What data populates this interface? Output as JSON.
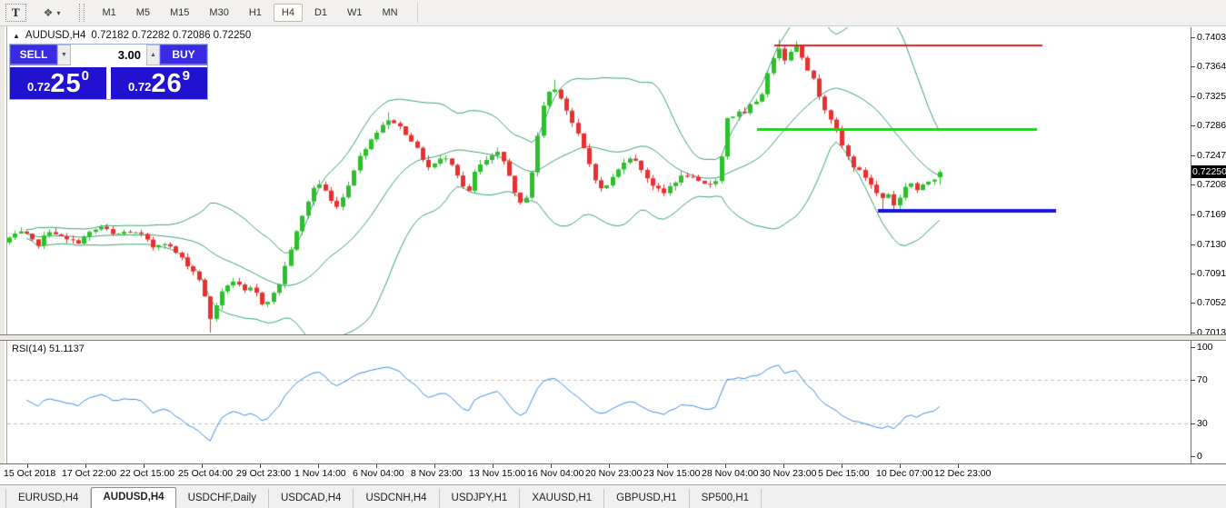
{
  "toolbar": {
    "text_tool_label": "T",
    "arrow_tool_glyph": "❖",
    "dropdown_caret": "▾",
    "timeframes": [
      "M1",
      "M5",
      "M15",
      "M30",
      "H1",
      "H4",
      "D1",
      "W1",
      "MN"
    ],
    "active_timeframe": "H4"
  },
  "chart": {
    "collapse_glyph": "▲",
    "symbol": "AUDUSD,H4",
    "values": "0.72182 0.72282 0.72086 0.72250",
    "current_price": "0.72250"
  },
  "trade_panel": {
    "sell_label": "SELL",
    "buy_label": "BUY",
    "volume": "3.00",
    "spinner_down_glyph": "▼",
    "spinner_up_glyph": "▲",
    "sell_price": {
      "prefix": "0.72",
      "big": "25",
      "sup": "0"
    },
    "buy_price": {
      "prefix": "0.72",
      "big": "26",
      "sup": "9"
    }
  },
  "rsi_pane": {
    "label": "RSI(14) 51.1137"
  },
  "bottom_tabs": {
    "active": "AUDUSD,H4",
    "tabs": [
      "EURUSD,H4",
      "AUDUSD,H4",
      "USDCHF,Daily",
      "USDCAD,H4",
      "USDCNH,H4",
      "USDJPY,H1",
      "XAUUSD,H1",
      "GBPUSD,H1",
      "SP500,H1"
    ]
  },
  "colors": {
    "candle_up": "#2ebe2e",
    "candle_down": "#e83030",
    "bollinger": "#3aa273",
    "rsi_line": "#3c8ede",
    "level_dash": "#c4c4c4",
    "price_tag_bg": "#000000",
    "price_tag_fg": "#ffffff"
  },
  "chart_data": [
    {
      "type": "candlestick",
      "symbol": "AUDUSD",
      "timeframe": "H4",
      "last_candle": {
        "open": 0.72182,
        "high": 0.72282,
        "low": 0.72086,
        "close": 0.7225
      },
      "y_ticks": [
        "0.74030",
        "0.73640",
        "0.73250",
        "0.72860",
        "0.72470",
        "0.72080",
        "0.71690",
        "0.71300",
        "0.70910",
        "0.70520",
        "0.70130"
      ],
      "ylim": [
        0.70106,
        0.74162
      ],
      "current_price": 0.7225,
      "x_labels": [
        "15 Oct 2018",
        "17 Oct 22:00",
        "22 Oct 15:00",
        "25 Oct 04:00",
        "29 Oct 23:00",
        "1 Nov 14:00",
        "6 Nov 04:00",
        "8 Nov 23:00",
        "13 Nov 15:00",
        "16 Nov 04:00",
        "20 Nov 23:00",
        "23 Nov 15:00",
        "28 Nov 04:00",
        "30 Nov 23:00",
        "5 Dec 15:00",
        "10 Dec 07:00",
        "12 Dec 23:00"
      ],
      "x_start": 10,
      "x_end": 1037,
      "candle_step": 6.32,
      "price_path": [
        [
          10,
          0.7138
        ],
        [
          25,
          0.7146
        ],
        [
          40,
          0.7128
        ],
        [
          55,
          0.7149
        ],
        [
          70,
          0.7136
        ],
        [
          85,
          0.7132
        ],
        [
          100,
          0.7146
        ],
        [
          112,
          0.7153
        ],
        [
          125,
          0.7141
        ],
        [
          140,
          0.7147
        ],
        [
          155,
          0.7142
        ],
        [
          168,
          0.7126
        ],
        [
          180,
          0.7133
        ],
        [
          192,
          0.712
        ],
        [
          205,
          0.7104
        ],
        [
          218,
          0.7086
        ],
        [
          226,
          0.7055
        ],
        [
          232,
          0.7028
        ],
        [
          238,
          0.7052
        ],
        [
          248,
          0.7075
        ],
        [
          258,
          0.7082
        ],
        [
          268,
          0.7066
        ],
        [
          278,
          0.7072
        ],
        [
          288,
          0.7052
        ],
        [
          298,
          0.7058
        ],
        [
          308,
          0.708
        ],
        [
          318,
          0.7118
        ],
        [
          328,
          0.7152
        ],
        [
          338,
          0.7185
        ],
        [
          346,
          0.7207
        ],
        [
          354,
          0.721
        ],
        [
          362,
          0.7188
        ],
        [
          372,
          0.718
        ],
        [
          382,
          0.7206
        ],
        [
          392,
          0.7238
        ],
        [
          402,
          0.7258
        ],
        [
          412,
          0.7275
        ],
        [
          422,
          0.729
        ],
        [
          432,
          0.7293
        ],
        [
          442,
          0.7282
        ],
        [
          452,
          0.7268
        ],
        [
          462,
          0.7248
        ],
        [
          472,
          0.723
        ],
        [
          482,
          0.724
        ],
        [
          492,
          0.7246
        ],
        [
          500,
          0.723
        ],
        [
          508,
          0.7208
        ],
        [
          515,
          0.7196
        ],
        [
          522,
          0.7225
        ],
        [
          530,
          0.7236
        ],
        [
          538,
          0.7243
        ],
        [
          548,
          0.725
        ],
        [
          558,
          0.723
        ],
        [
          566,
          0.7196
        ],
        [
          574,
          0.718
        ],
        [
          582,
          0.7202
        ],
        [
          590,
          0.7262
        ],
        [
          598,
          0.7315
        ],
        [
          606,
          0.7336
        ],
        [
          614,
          0.7332
        ],
        [
          622,
          0.731
        ],
        [
          630,
          0.7288
        ],
        [
          638,
          0.7268
        ],
        [
          646,
          0.7243
        ],
        [
          654,
          0.7218
        ],
        [
          662,
          0.72
        ],
        [
          670,
          0.7212
        ],
        [
          680,
          0.7228
        ],
        [
          690,
          0.7247
        ],
        [
          698,
          0.724
        ],
        [
          706,
          0.7228
        ],
        [
          714,
          0.7213
        ],
        [
          722,
          0.7203
        ],
        [
          730,
          0.7196
        ],
        [
          738,
          0.7208
        ],
        [
          746,
          0.7216
        ],
        [
          754,
          0.7222
        ],
        [
          762,
          0.7216
        ],
        [
          770,
          0.721
        ],
        [
          778,
          0.7207
        ],
        [
          786,
          0.7214
        ],
        [
          792,
          0.7218
        ],
        [
          797,
          0.7299
        ],
        [
          804,
          0.7294
        ],
        [
          810,
          0.7307
        ],
        [
          817,
          0.7297
        ],
        [
          824,
          0.7311
        ],
        [
          831,
          0.7318
        ],
        [
          838,
          0.733
        ],
        [
          845,
          0.7356
        ],
        [
          852,
          0.7383
        ],
        [
          858,
          0.7391
        ],
        [
          864,
          0.7372
        ],
        [
          870,
          0.7384
        ],
        [
          876,
          0.7393
        ],
        [
          882,
          0.7379
        ],
        [
          888,
          0.7362
        ],
        [
          894,
          0.7349
        ],
        [
          900,
          0.733
        ],
        [
          906,
          0.7312
        ],
        [
          912,
          0.73
        ],
        [
          918,
          0.7286
        ],
        [
          925,
          0.7263
        ],
        [
          932,
          0.7246
        ],
        [
          940,
          0.7231
        ],
        [
          948,
          0.7223
        ],
        [
          956,
          0.7213
        ],
        [
          964,
          0.7197
        ],
        [
          970,
          0.719
        ],
        [
          976,
          0.7199
        ],
        [
          982,
          0.7181
        ],
        [
          988,
          0.7186
        ],
        [
          995,
          0.7206
        ],
        [
          1002,
          0.7211
        ],
        [
          1010,
          0.7199
        ],
        [
          1018,
          0.7211
        ],
        [
          1026,
          0.7216
        ],
        [
          1032,
          0.7221
        ],
        [
          1037,
          0.7225
        ]
      ],
      "wick_events": [
        {
          "x": 231,
          "low": 0.7013
        },
        {
          "x": 425,
          "high": 0.7304
        },
        {
          "x": 608,
          "high": 0.7347
        },
        {
          "x": 858,
          "high": 0.74
        },
        {
          "x": 876,
          "high": 0.7398
        },
        {
          "x": 968,
          "low": 0.7171
        }
      ],
      "overlays": {
        "bollinger": {
          "period": 20,
          "deviation": 2
        }
      },
      "hlines": [
        {
          "price": 0.7392,
          "x1": 852,
          "x2": 1147,
          "width": 2,
          "color": "#dd2222"
        },
        {
          "price": 0.7282,
          "x1": 833,
          "x2": 1141,
          "width": 3,
          "color": "#00e400"
        },
        {
          "price": 0.7174,
          "x1": 966,
          "x2": 1162,
          "width": 4,
          "color": "#1414dc"
        }
      ]
    },
    {
      "type": "line",
      "name": "RSI",
      "label": "RSI(14) 51.1137",
      "period": 14,
      "value": 51.1137,
      "levels": [
        70,
        30
      ],
      "y_ticks": [
        "100",
        "70",
        "30",
        "0"
      ],
      "ylim": [
        -7,
        106
      ],
      "color": "#3c8ede",
      "grid": "dashed-levels-only",
      "legend_position": "top-left"
    }
  ]
}
